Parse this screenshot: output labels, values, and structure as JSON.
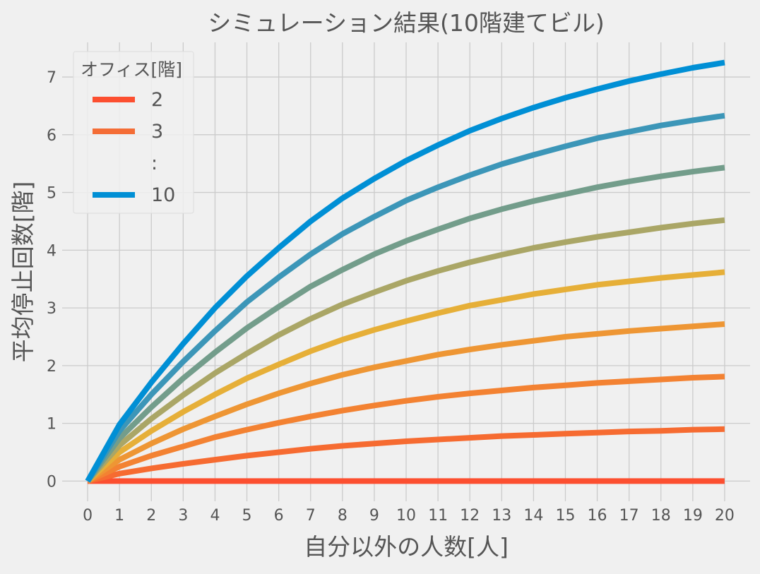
{
  "chart_data": {
    "type": "line",
    "title": "シミュレーション結果(10階建てビル)",
    "xlabel": "自分以外の人数[人]",
    "ylabel": "平均停止回数[階]",
    "xlim": [
      -0.8,
      20.8
    ],
    "ylim": [
      -0.35,
      7.6
    ],
    "x_ticks": [
      0,
      1,
      2,
      3,
      4,
      5,
      6,
      7,
      8,
      9,
      10,
      11,
      12,
      13,
      14,
      15,
      16,
      17,
      18,
      19,
      20
    ],
    "y_ticks": [
      0,
      1,
      2,
      3,
      4,
      5,
      6,
      7
    ],
    "grid": true,
    "legend": {
      "title": "オフィス[階]",
      "placement": "top-left",
      "entries": [
        {
          "label": "2",
          "color": "#fc4f30"
        },
        {
          "label": "3",
          "color": "#f46d36"
        },
        {
          "label": ":",
          "color": ""
        },
        {
          "label": "10",
          "color": "#008fd5"
        }
      ]
    },
    "x": [
      0,
      1,
      2,
      3,
      4,
      5,
      6,
      7,
      8,
      9,
      10,
      11,
      12,
      13,
      14,
      15,
      16,
      17,
      18,
      19,
      20
    ],
    "series": [
      {
        "name": "2",
        "color": "#fc4f30",
        "values": [
          0,
          0,
          0,
          0,
          0,
          0,
          0,
          0,
          0,
          0,
          0,
          0,
          0,
          0,
          0,
          0,
          0,
          0,
          0,
          0,
          0
        ]
      },
      {
        "color": "#f66b31",
        "values": [
          0,
          0.13,
          0.22,
          0.3,
          0.37,
          0.44,
          0.5,
          0.56,
          0.61,
          0.65,
          0.69,
          0.72,
          0.75,
          0.78,
          0.8,
          0.82,
          0.84,
          0.86,
          0.87,
          0.89,
          0.9
        ]
      },
      {
        "color": "#f38232",
        "values": [
          0,
          0.25,
          0.44,
          0.6,
          0.76,
          0.89,
          1.01,
          1.12,
          1.22,
          1.31,
          1.39,
          1.46,
          1.52,
          1.57,
          1.62,
          1.66,
          1.7,
          1.73,
          1.76,
          1.79,
          1.81
        ]
      },
      {
        "color": "#ee9634",
        "values": [
          0,
          0.37,
          0.65,
          0.9,
          1.12,
          1.33,
          1.52,
          1.69,
          1.84,
          1.97,
          2.08,
          2.19,
          2.28,
          2.36,
          2.43,
          2.5,
          2.55,
          2.6,
          2.64,
          2.68,
          2.72
        ]
      },
      {
        "color": "#e6af38",
        "values": [
          0,
          0.5,
          0.87,
          1.2,
          1.5,
          1.78,
          2.02,
          2.25,
          2.45,
          2.62,
          2.77,
          2.91,
          3.04,
          3.14,
          3.24,
          3.32,
          3.4,
          3.46,
          3.52,
          3.57,
          3.62
        ]
      },
      {
        "color": "#aaa666",
        "values": [
          0,
          0.62,
          1.08,
          1.49,
          1.87,
          2.21,
          2.53,
          2.81,
          3.06,
          3.27,
          3.47,
          3.64,
          3.79,
          3.92,
          4.04,
          4.14,
          4.23,
          4.31,
          4.39,
          4.46,
          4.52
        ]
      },
      {
        "color": "#739d8b",
        "values": [
          0,
          0.74,
          1.28,
          1.78,
          2.23,
          2.65,
          3.02,
          3.37,
          3.66,
          3.93,
          4.16,
          4.36,
          4.55,
          4.71,
          4.85,
          4.97,
          5.09,
          5.19,
          5.28,
          5.36,
          5.43
        ]
      },
      {
        "color": "#3c96b8",
        "values": [
          0,
          0.87,
          1.5,
          2.07,
          2.6,
          3.1,
          3.53,
          3.93,
          4.28,
          4.58,
          4.86,
          5.09,
          5.3,
          5.49,
          5.65,
          5.8,
          5.94,
          6.05,
          6.16,
          6.25,
          6.33
        ]
      },
      {
        "name": "10",
        "color": "#008fd5",
        "values": [
          0,
          0.98,
          1.71,
          2.38,
          3.0,
          3.55,
          4.04,
          4.5,
          4.9,
          5.24,
          5.55,
          5.82,
          6.07,
          6.28,
          6.47,
          6.64,
          6.79,
          6.93,
          7.05,
          7.16,
          7.25
        ]
      }
    ]
  }
}
